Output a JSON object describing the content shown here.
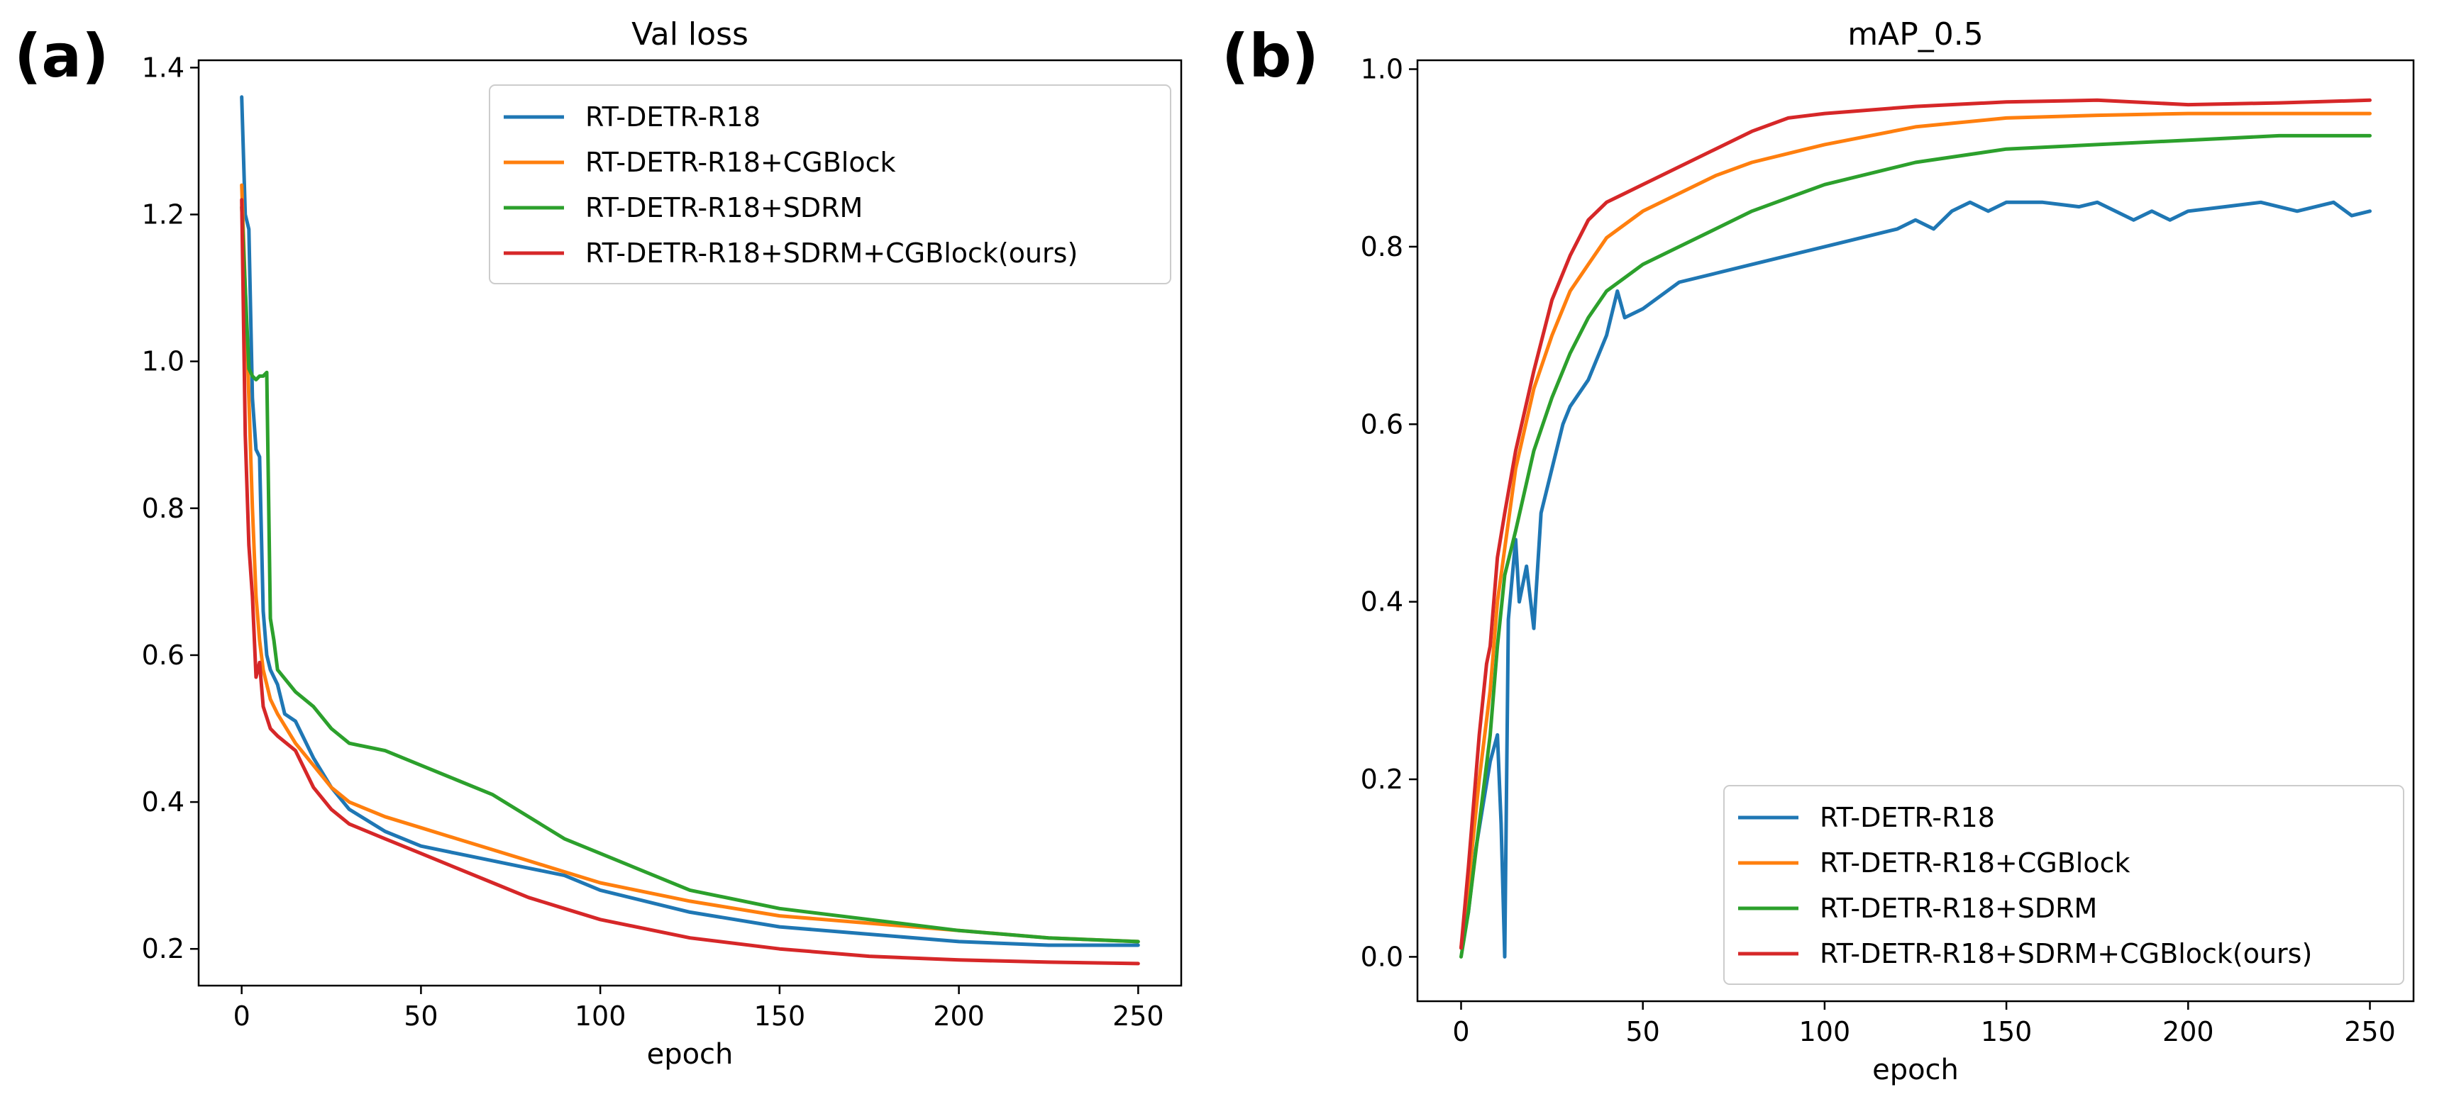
{
  "panels": [
    {
      "label": "(a)"
    },
    {
      "label": "(b)"
    }
  ],
  "series_colors": [
    "#1f77b4",
    "#ff7f0e",
    "#2ca02c",
    "#d62728"
  ],
  "chart_data": [
    {
      "type": "line",
      "title": "Val loss",
      "xlabel": "epoch",
      "ylabel": "",
      "xlim": [
        -12,
        262
      ],
      "ylim": [
        0.15,
        1.41
      ],
      "xticks": [
        0,
        50,
        100,
        150,
        200,
        250
      ],
      "yticks": [
        0.2,
        0.4,
        0.6,
        0.8,
        1.0,
        1.2,
        1.4
      ],
      "ytick_labels": [
        "0.2",
        "0.4",
        "0.6",
        "0.8",
        "1.0",
        "1.2",
        "1.4"
      ],
      "grid": false,
      "legend": "upper right",
      "series": [
        {
          "name": "RT-DETR-R18",
          "color": "#1f77b4",
          "x": [
            0,
            1,
            2,
            3,
            4,
            5,
            6,
            7,
            8,
            10,
            12,
            15,
            20,
            25,
            30,
            40,
            50,
            60,
            70,
            80,
            90,
            100,
            125,
            150,
            175,
            200,
            225,
            250
          ],
          "y": [
            1.36,
            1.2,
            1.18,
            0.95,
            0.88,
            0.87,
            0.66,
            0.6,
            0.58,
            0.56,
            0.52,
            0.51,
            0.46,
            0.42,
            0.39,
            0.36,
            0.34,
            0.33,
            0.32,
            0.31,
            0.3,
            0.28,
            0.25,
            0.23,
            0.22,
            0.21,
            0.205,
            0.205
          ]
        },
        {
          "name": "RT-DETR-R18+CGBlock",
          "color": "#ff7f0e",
          "x": [
            0,
            1,
            2,
            3,
            4,
            5,
            6,
            8,
            10,
            15,
            20,
            25,
            30,
            40,
            50,
            60,
            70,
            80,
            90,
            100,
            125,
            150,
            175,
            200,
            225,
            250
          ],
          "y": [
            1.24,
            1.1,
            0.95,
            0.8,
            0.68,
            0.62,
            0.58,
            0.54,
            0.52,
            0.48,
            0.45,
            0.42,
            0.4,
            0.38,
            0.365,
            0.35,
            0.335,
            0.32,
            0.305,
            0.29,
            0.265,
            0.245,
            0.235,
            0.225,
            0.215,
            0.21
          ]
        },
        {
          "name": "RT-DETR-R18+SDRM",
          "color": "#2ca02c",
          "x": [
            0,
            1,
            2,
            3,
            4,
            5,
            6,
            7,
            8,
            9,
            10,
            15,
            20,
            25,
            30,
            40,
            50,
            60,
            70,
            80,
            90,
            100,
            125,
            150,
            175,
            200,
            225,
            250
          ],
          "y": [
            1.21,
            1.1,
            0.99,
            0.98,
            0.975,
            0.98,
            0.98,
            0.985,
            0.65,
            0.62,
            0.58,
            0.55,
            0.53,
            0.5,
            0.48,
            0.47,
            0.45,
            0.43,
            0.41,
            0.38,
            0.35,
            0.33,
            0.28,
            0.255,
            0.24,
            0.225,
            0.215,
            0.21
          ]
        },
        {
          "name": "RT-DETR-R18+SDRM+CGBlock(ours)",
          "color": "#d62728",
          "x": [
            0,
            1,
            2,
            3,
            4,
            5,
            6,
            8,
            10,
            15,
            20,
            25,
            30,
            40,
            50,
            60,
            70,
            80,
            90,
            100,
            125,
            150,
            175,
            200,
            225,
            250
          ],
          "y": [
            1.22,
            0.9,
            0.75,
            0.68,
            0.57,
            0.59,
            0.53,
            0.5,
            0.49,
            0.47,
            0.42,
            0.39,
            0.37,
            0.35,
            0.33,
            0.31,
            0.29,
            0.27,
            0.255,
            0.24,
            0.215,
            0.2,
            0.19,
            0.185,
            0.182,
            0.18
          ]
        }
      ]
    },
    {
      "type": "line",
      "title": "mAP_0.5",
      "xlabel": "epoch",
      "ylabel": "",
      "xlim": [
        -12,
        262
      ],
      "ylim": [
        -0.05,
        1.01
      ],
      "xticks": [
        0,
        50,
        100,
        150,
        200,
        250
      ],
      "yticks": [
        0.0,
        0.2,
        0.4,
        0.6,
        0.8,
        1.0
      ],
      "ytick_labels": [
        "0.0",
        "0.2",
        "0.4",
        "0.6",
        "0.8",
        "1.0"
      ],
      "grid": false,
      "legend": "lower right",
      "series": [
        {
          "name": "RT-DETR-R18",
          "color": "#1f77b4",
          "x": [
            0,
            2,
            4,
            6,
            8,
            10,
            11,
            12,
            13,
            15,
            16,
            18,
            20,
            22,
            25,
            28,
            30,
            35,
            40,
            43,
            45,
            50,
            60,
            70,
            80,
            90,
            100,
            110,
            120,
            125,
            130,
            135,
            140,
            145,
            150,
            160,
            170,
            175,
            180,
            185,
            190,
            195,
            200,
            210,
            220,
            230,
            240,
            245,
            250
          ],
          "y": [
            0.01,
            0.05,
            0.12,
            0.17,
            0.22,
            0.25,
            0.15,
            0.0,
            0.38,
            0.47,
            0.4,
            0.44,
            0.37,
            0.5,
            0.55,
            0.6,
            0.62,
            0.65,
            0.7,
            0.75,
            0.72,
            0.73,
            0.76,
            0.77,
            0.78,
            0.79,
            0.8,
            0.81,
            0.82,
            0.83,
            0.82,
            0.84,
            0.85,
            0.84,
            0.85,
            0.85,
            0.845,
            0.85,
            0.84,
            0.83,
            0.84,
            0.83,
            0.84,
            0.845,
            0.85,
            0.84,
            0.85,
            0.835,
            0.84
          ]
        },
        {
          "name": "RT-DETR-R18+CGBlock",
          "color": "#ff7f0e",
          "x": [
            0,
            2,
            5,
            8,
            10,
            15,
            20,
            25,
            30,
            35,
            40,
            50,
            60,
            70,
            80,
            90,
            100,
            125,
            150,
            175,
            200,
            225,
            250
          ],
          "y": [
            0.01,
            0.08,
            0.2,
            0.3,
            0.4,
            0.55,
            0.64,
            0.7,
            0.75,
            0.78,
            0.81,
            0.84,
            0.86,
            0.88,
            0.895,
            0.905,
            0.915,
            0.935,
            0.945,
            0.948,
            0.95,
            0.95,
            0.95
          ]
        },
        {
          "name": "RT-DETR-R18+SDRM",
          "color": "#2ca02c",
          "x": [
            0,
            2,
            5,
            8,
            10,
            12,
            15,
            20,
            25,
            30,
            35,
            40,
            50,
            60,
            70,
            80,
            90,
            100,
            125,
            150,
            175,
            200,
            225,
            250
          ],
          "y": [
            0.0,
            0.05,
            0.15,
            0.25,
            0.35,
            0.43,
            0.48,
            0.57,
            0.63,
            0.68,
            0.72,
            0.75,
            0.78,
            0.8,
            0.82,
            0.84,
            0.855,
            0.87,
            0.895,
            0.91,
            0.915,
            0.92,
            0.925,
            0.925
          ]
        },
        {
          "name": "RT-DETR-R18+SDRM+CGBlock(ours)",
          "color": "#d62728",
          "x": [
            0,
            2,
            5,
            7,
            8,
            10,
            12,
            15,
            20,
            25,
            30,
            35,
            40,
            50,
            60,
            70,
            80,
            90,
            100,
            125,
            150,
            175,
            200,
            225,
            250
          ],
          "y": [
            0.01,
            0.1,
            0.25,
            0.33,
            0.35,
            0.45,
            0.5,
            0.57,
            0.66,
            0.74,
            0.79,
            0.83,
            0.85,
            0.87,
            0.89,
            0.91,
            0.93,
            0.945,
            0.95,
            0.958,
            0.963,
            0.965,
            0.96,
            0.962,
            0.965
          ]
        }
      ]
    }
  ]
}
